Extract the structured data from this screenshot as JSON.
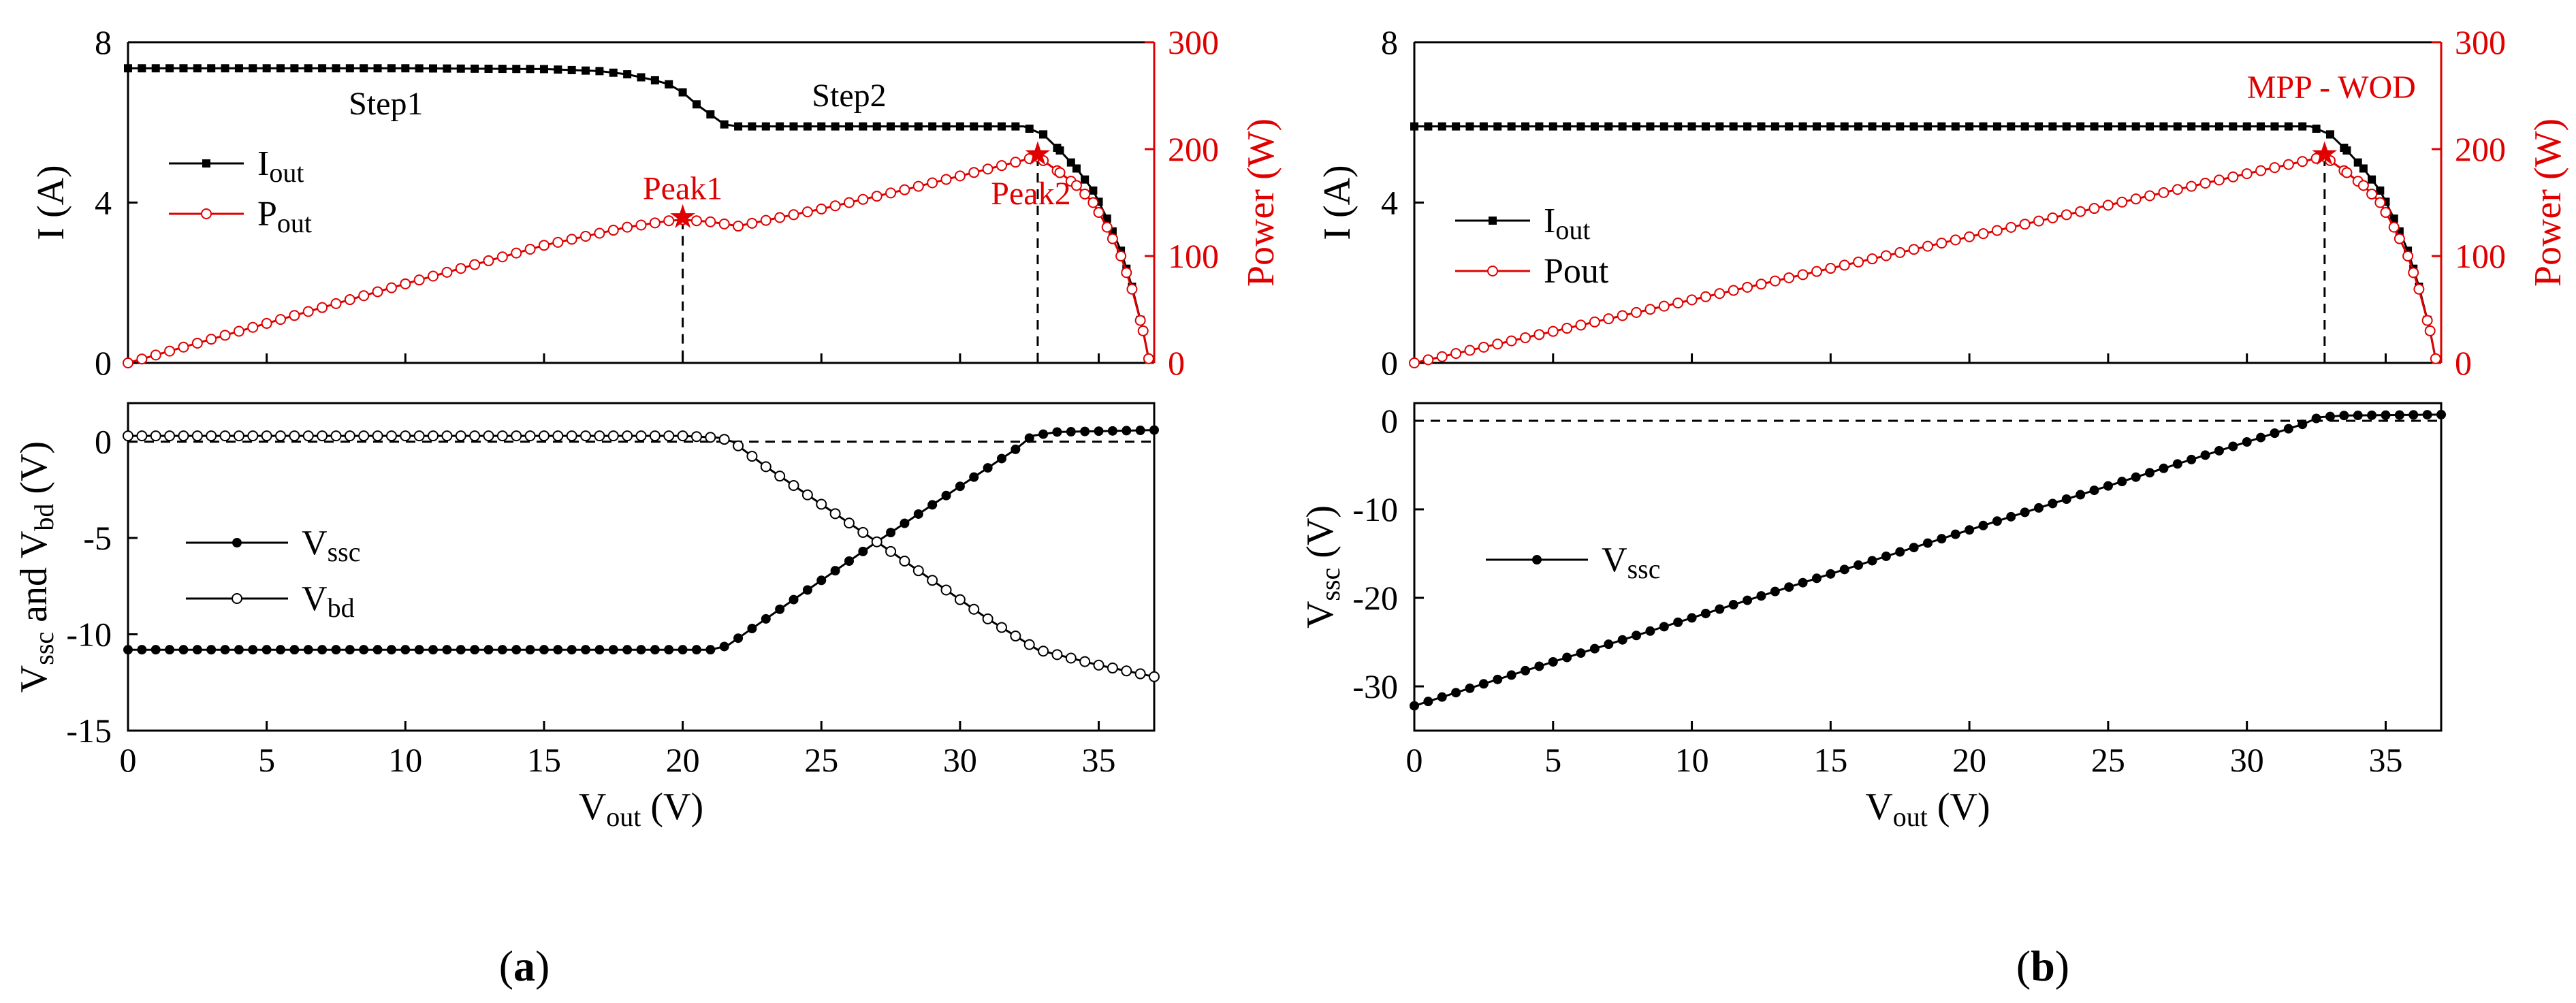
{
  "chart_data": [
    {
      "id": "a_top",
      "type": "line",
      "xlim": [
        0,
        37
      ],
      "ylim_left": [
        0,
        8
      ],
      "ylim_right": [
        0,
        300
      ],
      "yticks_left": [
        "0",
        "4",
        "8"
      ],
      "yticks_right": [
        "0",
        "100",
        "200",
        "300"
      ],
      "ylabel_left": "I (A)",
      "ylabel_right": "Power (W)",
      "series": [
        {
          "name": "Iout",
          "legend_main": "I",
          "legend_sub": "out",
          "axis": "left",
          "marker": "square-filled",
          "color": "#000000",
          "points": [
            [
              0,
              7.35
            ],
            [
              5,
              7.35
            ],
            [
              10,
              7.35
            ],
            [
              15,
              7.33
            ],
            [
              17,
              7.28
            ],
            [
              18,
              7.2
            ],
            [
              19,
              7.05
            ],
            [
              19.5,
              6.95
            ],
            [
              20,
              6.75
            ],
            [
              20.5,
              6.45
            ],
            [
              21,
              6.2
            ],
            [
              21.5,
              5.95
            ],
            [
              22,
              5.9
            ],
            [
              25,
              5.9
            ],
            [
              30,
              5.9
            ],
            [
              32.3,
              5.9
            ],
            [
              33,
              5.7
            ],
            [
              33.6,
              5.3
            ],
            [
              34.2,
              4.85
            ],
            [
              34.8,
              4.3
            ],
            [
              35.3,
              3.6
            ],
            [
              35.8,
              2.8
            ],
            [
              36.2,
              1.9
            ],
            [
              36.6,
              0.8
            ],
            [
              36.8,
              0.1
            ]
          ]
        },
        {
          "name": "Pout",
          "legend_main": "P",
          "legend_sub": "out",
          "axis": "right",
          "marker": "circle-open",
          "color": "#e00000",
          "points": [
            [
              0,
              0
            ],
            [
              5,
              37
            ],
            [
              10,
              74
            ],
            [
              15,
              110
            ],
            [
              18,
              127
            ],
            [
              19.5,
              133
            ],
            [
              20,
              134
            ],
            [
              21,
              132
            ],
            [
              22,
              128
            ],
            [
              25,
              144
            ],
            [
              28,
              162
            ],
            [
              32.8,
              193
            ],
            [
              33.6,
              178
            ],
            [
              34.2,
              166
            ],
            [
              34.8,
              150
            ],
            [
              35.3,
              127
            ],
            [
              35.8,
              100
            ],
            [
              36.2,
              69
            ],
            [
              36.6,
              30
            ],
            [
              36.8,
              4
            ]
          ]
        }
      ],
      "annotations": [
        {
          "text": "Step1",
          "x": 9.3,
          "y": 6.2,
          "color": "#000000"
        },
        {
          "text": "Step2",
          "x": 26,
          "y": 6.4,
          "color": "#000000"
        },
        {
          "text": "Peak1",
          "x": 20,
          "y_power": 134,
          "color": "#e00000"
        },
        {
          "text": "Peak2",
          "x": 32.8,
          "y_power": 193,
          "color": "#e00000"
        }
      ],
      "vlines": [
        {
          "x": 20,
          "y_power": 134
        },
        {
          "x": 32.8,
          "y_power": 193
        }
      ]
    },
    {
      "id": "a_bottom",
      "type": "line",
      "xlim": [
        0,
        37
      ],
      "ylim": [
        -15,
        2
      ],
      "yticks": [
        "-15",
        "-10",
        "-5",
        "0"
      ],
      "xticks": [
        "0",
        "5",
        "10",
        "15",
        "20",
        "25",
        "30",
        "35"
      ],
      "xlabel_main": "V",
      "xlabel_sub": "out",
      "xlabel_unit": " (V)",
      "ylabel_parts": [
        "V",
        "ssc",
        " and V",
        "bd",
        " (V)"
      ],
      "hline": 0,
      "series": [
        {
          "name": "Vssc",
          "legend_main": "V",
          "legend_sub": "ssc",
          "marker": "circle-filled",
          "color": "#000000",
          "points": [
            [
              0,
              -10.8
            ],
            [
              21,
              -10.8
            ],
            [
              21.6,
              -10.6
            ],
            [
              22.3,
              -9.9
            ],
            [
              27,
              -5.2
            ],
            [
              32,
              -0.4
            ],
            [
              32.6,
              0.3
            ],
            [
              33.5,
              0.5
            ],
            [
              37,
              0.6
            ]
          ]
        },
        {
          "name": "Vbd",
          "legend_main": "V",
          "legend_sub": "bd",
          "marker": "circle-open",
          "color": "#000000",
          "points": [
            [
              0,
              0.3
            ],
            [
              20,
              0.3
            ],
            [
              21.3,
              0.2
            ],
            [
              21.8,
              0
            ],
            [
              23,
              -1.3
            ],
            [
              27,
              -5.2
            ],
            [
              31,
              -9.2
            ],
            [
              32.8,
              -10.8
            ],
            [
              35,
              -11.6
            ],
            [
              37,
              -12.2
            ]
          ]
        }
      ]
    },
    {
      "id": "b_top",
      "type": "line",
      "xlim": [
        0,
        37
      ],
      "ylim_left": [
        0,
        8
      ],
      "ylim_right": [
        0,
        300
      ],
      "yticks_left": [
        "0",
        "4",
        "8"
      ],
      "yticks_right": [
        "0",
        "100",
        "200",
        "300"
      ],
      "ylabel_left": "I (A)",
      "ylabel_right": "Power (W)",
      "series": [
        {
          "name": "Iout",
          "legend_main": "I",
          "legend_sub": "out",
          "axis": "left",
          "marker": "square-filled",
          "color": "#000000",
          "points": [
            [
              0,
              5.9
            ],
            [
              10,
              5.9
            ],
            [
              20,
              5.9
            ],
            [
              30,
              5.9
            ],
            [
              32.3,
              5.9
            ],
            [
              33,
              5.7
            ],
            [
              33.6,
              5.3
            ],
            [
              34.2,
              4.85
            ],
            [
              34.8,
              4.3
            ],
            [
              35.3,
              3.6
            ],
            [
              35.8,
              2.8
            ],
            [
              36.2,
              1.9
            ],
            [
              36.6,
              0.8
            ],
            [
              36.8,
              0.1
            ]
          ]
        },
        {
          "name": "Pout",
          "legend_main": "Pout",
          "legend_sub": "",
          "axis": "right",
          "marker": "circle-open",
          "color": "#e00000",
          "points": [
            [
              0,
              0
            ],
            [
              10,
              59
            ],
            [
              20,
              118
            ],
            [
              30,
              177
            ],
            [
              32.8,
              193
            ],
            [
              33.6,
              178
            ],
            [
              34.2,
              166
            ],
            [
              34.8,
              150
            ],
            [
              35.3,
              127
            ],
            [
              35.8,
              100
            ],
            [
              36.2,
              69
            ],
            [
              36.6,
              30
            ],
            [
              36.8,
              4
            ]
          ]
        }
      ],
      "annotations": [
        {
          "text": "MPP - WOD",
          "x": 32.8,
          "y_power": 193,
          "color": "#e00000"
        }
      ],
      "vlines": [
        {
          "x": 32.8,
          "y_power": 193
        }
      ]
    },
    {
      "id": "b_bottom",
      "type": "line",
      "xlim": [
        0,
        37
      ],
      "ylim": [
        -35,
        2
      ],
      "yticks": [
        "-30",
        "-20",
        "-10",
        "0"
      ],
      "xticks": [
        "0",
        "5",
        "10",
        "15",
        "20",
        "25",
        "30",
        "35"
      ],
      "xlabel_main": "V",
      "xlabel_sub": "out",
      "xlabel_unit": " (V)",
      "ylabel_parts": [
        "V",
        "ssc",
        " (V)"
      ],
      "hline": 0,
      "series": [
        {
          "name": "Vssc",
          "legend_main": "V",
          "legend_sub": "ssc",
          "marker": "circle-filled",
          "color": "#000000",
          "points": [
            [
              0,
              -32.2
            ],
            [
              32,
              -0.4
            ],
            [
              32.6,
              0.4
            ],
            [
              33.5,
              0.6
            ],
            [
              37,
              0.7
            ]
          ]
        }
      ]
    }
  ],
  "panel_labels": {
    "a": "a",
    "b": "b"
  }
}
